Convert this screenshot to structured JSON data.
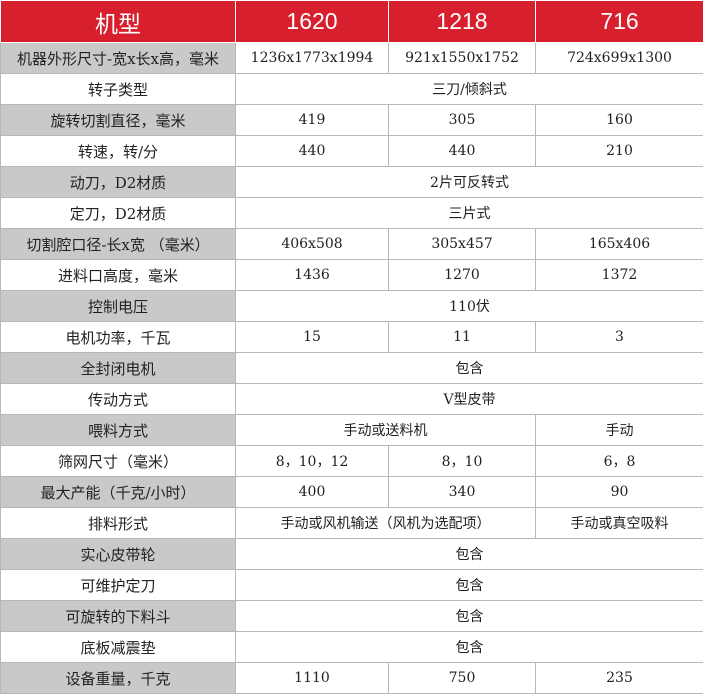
{
  "header": {
    "label": "机型",
    "models": [
      "1620",
      "1218",
      "716"
    ]
  },
  "rows": [
    {
      "label": "机器外形尺寸-宽x长x高，毫米",
      "cells": [
        {
          "text": "1236x1773x1994",
          "span": 1
        },
        {
          "text": "921x1550x1752",
          "span": 1
        },
        {
          "text": "724x699x1300",
          "span": 1
        }
      ]
    },
    {
      "label": "转子类型",
      "cells": [
        {
          "text": "三刀/倾斜式",
          "span": 3
        }
      ]
    },
    {
      "label": "旋转切割直径，毫米",
      "cells": [
        {
          "text": "419",
          "span": 1
        },
        {
          "text": "305",
          "span": 1
        },
        {
          "text": "160",
          "span": 1
        }
      ]
    },
    {
      "label": "转速，转/分",
      "cells": [
        {
          "text": "440",
          "span": 1
        },
        {
          "text": "440",
          "span": 1
        },
        {
          "text": "210",
          "span": 1
        }
      ]
    },
    {
      "label": "动刀，D2材质",
      "cells": [
        {
          "text": "2片可反转式",
          "span": 3
        }
      ]
    },
    {
      "label": "定刀，D2材质",
      "cells": [
        {
          "text": "三片式",
          "span": 3
        }
      ]
    },
    {
      "label": "切割腔口径-长x宽 （毫米）",
      "cells": [
        {
          "text": "406x508",
          "span": 1
        },
        {
          "text": "305x457",
          "span": 1
        },
        {
          "text": "165x406",
          "span": 1
        }
      ]
    },
    {
      "label": "进料口高度，毫米",
      "cells": [
        {
          "text": "1436",
          "span": 1
        },
        {
          "text": "1270",
          "span": 1
        },
        {
          "text": "1372",
          "span": 1
        }
      ]
    },
    {
      "label": "控制电压",
      "cells": [
        {
          "text": "110伏",
          "span": 3
        }
      ]
    },
    {
      "label": "电机功率，千瓦",
      "cells": [
        {
          "text": "15",
          "span": 1
        },
        {
          "text": "11",
          "span": 1
        },
        {
          "text": "3",
          "span": 1
        }
      ]
    },
    {
      "label": "全封闭电机",
      "cells": [
        {
          "text": "包含",
          "span": 3
        }
      ]
    },
    {
      "label": "传动方式",
      "cells": [
        {
          "text": "V型皮带",
          "span": 3
        }
      ]
    },
    {
      "label": "喂料方式",
      "cells": [
        {
          "text": "手动或送料机",
          "span": 2
        },
        {
          "text": "手动",
          "span": 1
        }
      ]
    },
    {
      "label": "筛网尺寸（毫米）",
      "cells": [
        {
          "text": "8，10，12",
          "span": 1
        },
        {
          "text": "8，10",
          "span": 1
        },
        {
          "text": "6，8",
          "span": 1
        }
      ]
    },
    {
      "label": "最大产能（千克/小时）",
      "cells": [
        {
          "text": "400",
          "span": 1
        },
        {
          "text": "340",
          "span": 1
        },
        {
          "text": "90",
          "span": 1
        }
      ]
    },
    {
      "label": "排料形式",
      "cells": [
        {
          "text": "手动或风机输送（风机为选配项）",
          "span": 2
        },
        {
          "text": "手动或真空吸料",
          "span": 1
        }
      ]
    },
    {
      "label": "实心皮带轮",
      "cells": [
        {
          "text": "包含",
          "span": 3
        }
      ]
    },
    {
      "label": "可维护定刀",
      "cells": [
        {
          "text": "包含",
          "span": 3
        }
      ]
    },
    {
      "label": "可旋转的下料斗",
      "cells": [
        {
          "text": "包含",
          "span": 3
        }
      ]
    },
    {
      "label": "底板减震垫",
      "cells": [
        {
          "text": "包含",
          "span": 3
        }
      ]
    },
    {
      "label": "设备重量，千克",
      "cells": [
        {
          "text": "1110",
          "span": 1
        },
        {
          "text": "750",
          "span": 1
        },
        {
          "text": "235",
          "span": 1
        }
      ]
    }
  ],
  "colors": {
    "header_bg": "#d71f2d",
    "label_alt_bg": "#c9c9c9",
    "border": "#b7b7b7"
  }
}
